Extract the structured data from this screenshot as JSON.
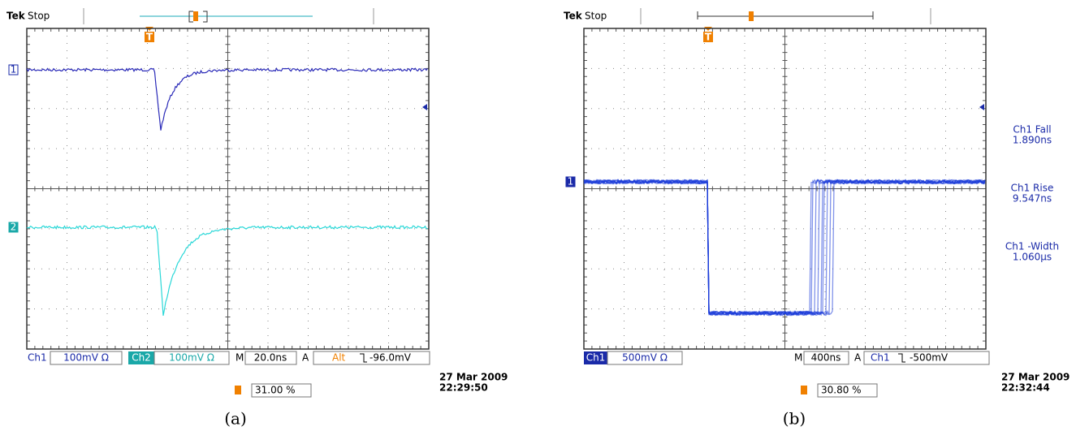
{
  "panels": [
    {
      "brand": "Tek",
      "status": "Stop",
      "channel_markers": [
        "1",
        "2"
      ],
      "trigger_marker": "T",
      "status_bar": {
        "ch1": "Ch1",
        "ch1_scale": "100mV Ω",
        "ch2": "Ch2",
        "ch2_scale": "100mV Ω",
        "time_prefix": "M",
        "timebase": "20.0ns",
        "trigger_prefix": "A",
        "trigger_source": "Alt",
        "trigger_level": "-96.0mV"
      },
      "trigger_position": "31.00 %",
      "date": "27 Mar 2009",
      "time": "22:29:50",
      "caption": "(a)"
    },
    {
      "brand": "Tek",
      "status": "Stop",
      "channel_markers": [
        "1"
      ],
      "trigger_marker": "T",
      "status_bar": {
        "ch1": "Ch1",
        "ch1_scale": "500mV Ω",
        "time_prefix": "M",
        "timebase": "400ns",
        "trigger_prefix": "A",
        "trigger_source": "Ch1",
        "trigger_level": "-500mV"
      },
      "measurements": [
        {
          "label": "Ch1 Fall",
          "value": "1.890ns"
        },
        {
          "label": "Ch1 Rise",
          "value": "9.547ns"
        },
        {
          "label": "Ch1 -Width",
          "value": "1.060µs"
        }
      ],
      "trigger_position": "30.80 %",
      "date": "27 Mar 2009",
      "time": "22:32:44",
      "caption": "(b)"
    }
  ]
}
